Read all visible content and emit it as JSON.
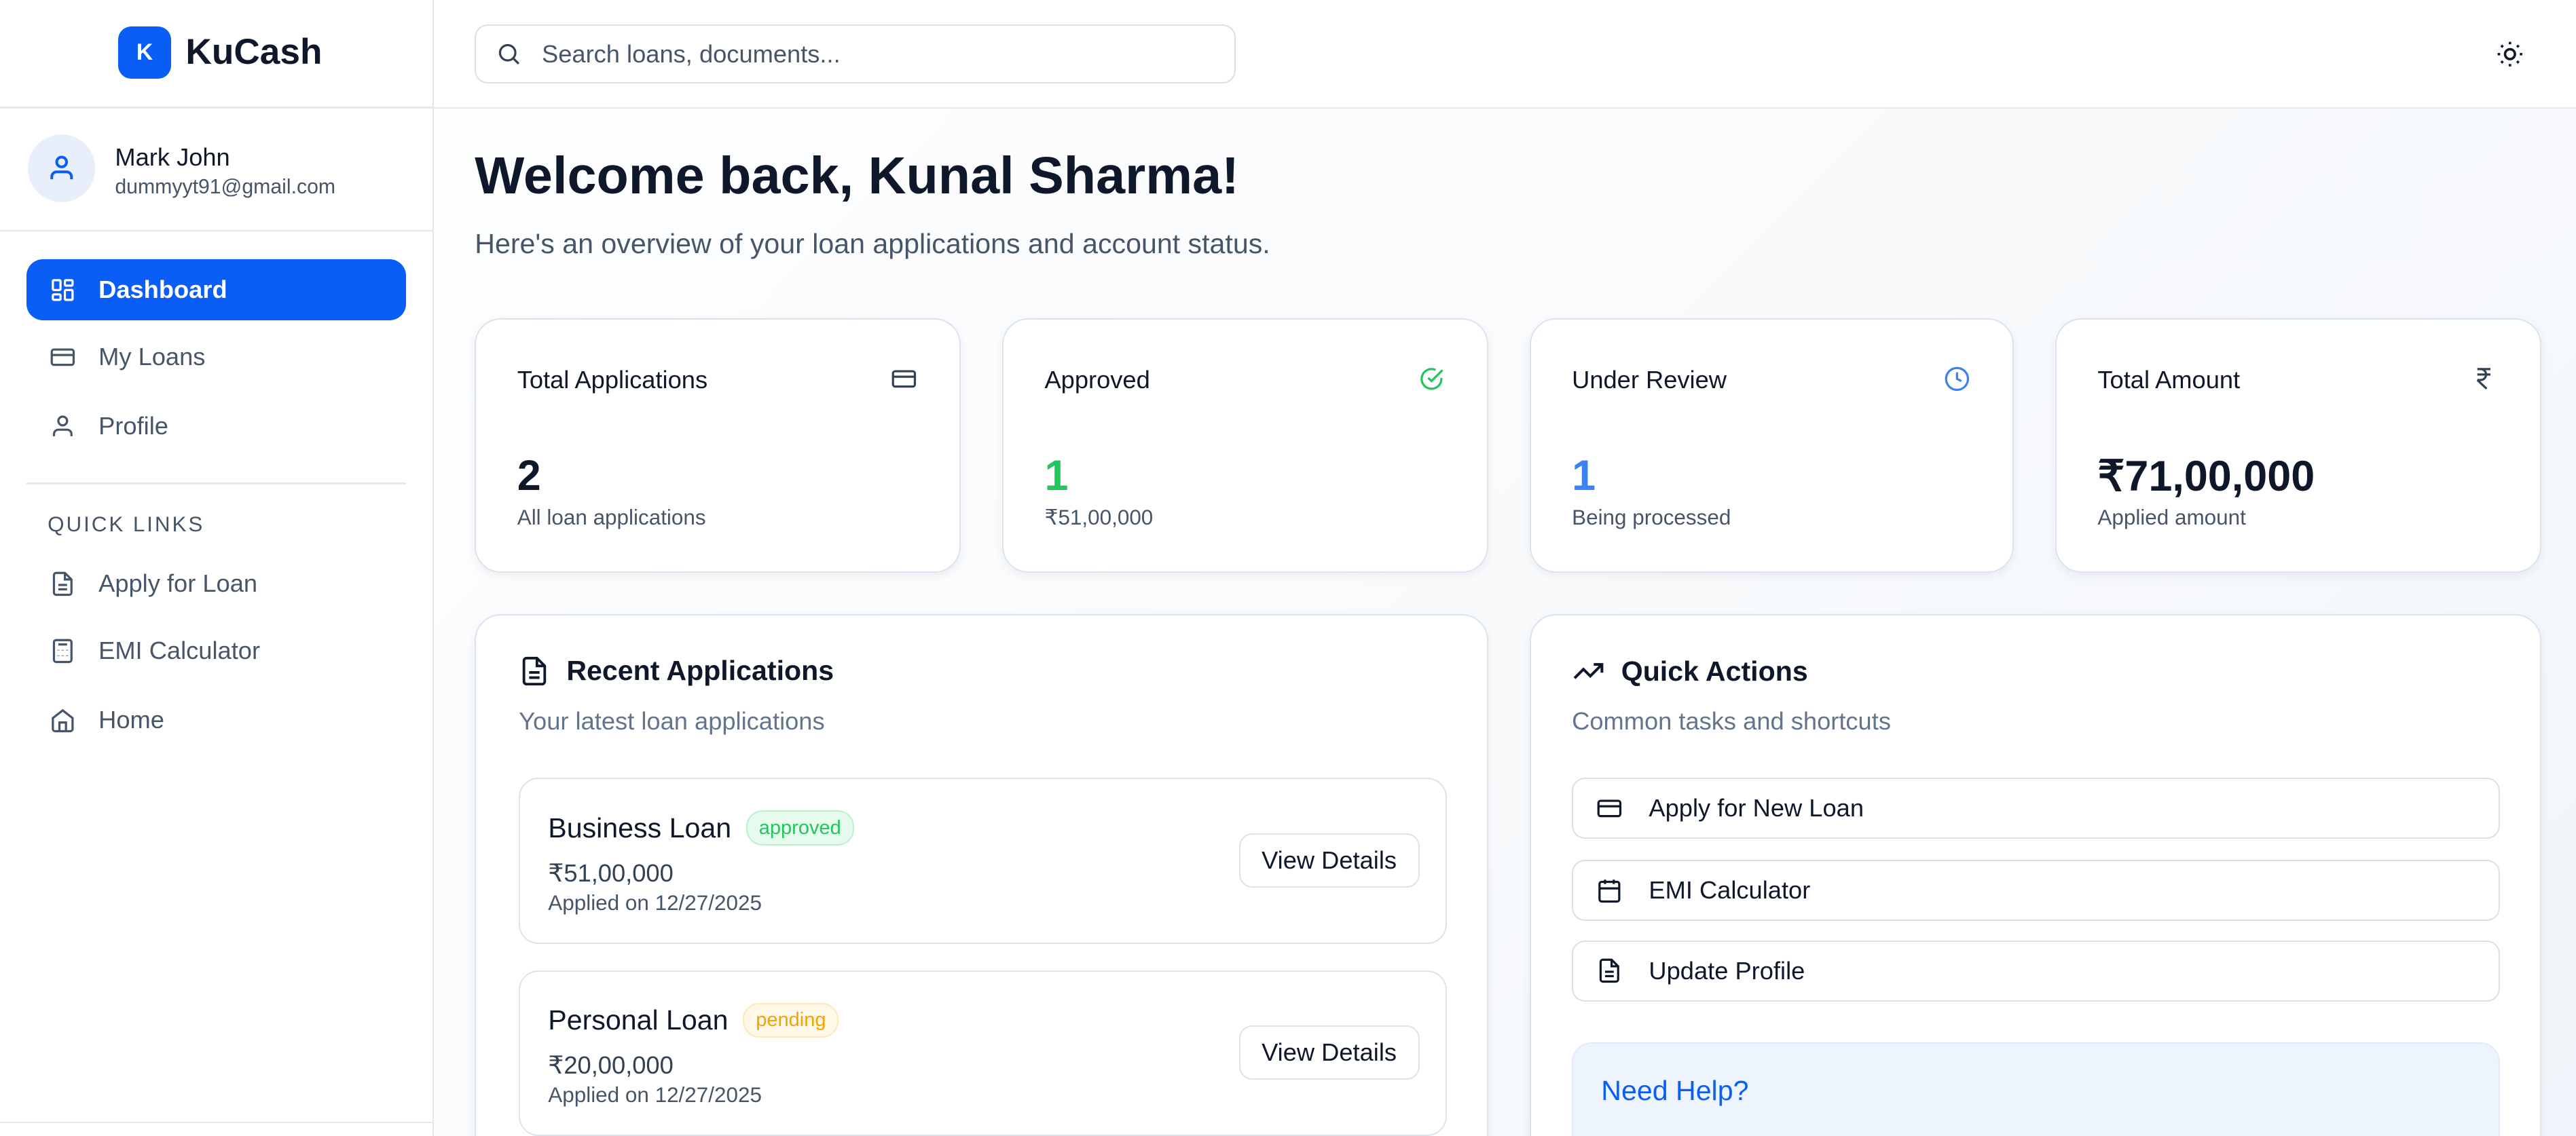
{
  "brand": {
    "logo_letter": "K",
    "name": "KuCash",
    "accent": "#0a5ef5"
  },
  "user": {
    "name": "Mark John",
    "email": "dummyyt91@gmail.com"
  },
  "nav": {
    "items": [
      {
        "label": "Dashboard",
        "icon": "grid-icon",
        "active": true
      },
      {
        "label": "My Loans",
        "icon": "credit-card-icon"
      },
      {
        "label": "Profile",
        "icon": "user-icon"
      }
    ]
  },
  "quick_links": {
    "heading": "QUICK LINKS",
    "items": [
      {
        "label": "Apply for Loan",
        "icon": "file-text-icon"
      },
      {
        "label": "EMI Calculator",
        "icon": "calculator-icon"
      },
      {
        "label": "Home",
        "icon": "home-icon"
      }
    ]
  },
  "search": {
    "placeholder": "Search loans, documents...",
    "value": ""
  },
  "header": {
    "title": "Welcome back, Kunal Sharma!",
    "subtitle": "Here's an overview of your loan applications and account status."
  },
  "stats": [
    {
      "label": "Total Applications",
      "value": "2",
      "sub": "All loan applications",
      "icon": "credit-card-icon",
      "color": "#0f172a"
    },
    {
      "label": "Approved",
      "value": "1",
      "sub": "₹51,00,000",
      "icon": "check-circle-icon",
      "color": "#22c55e"
    },
    {
      "label": "Under Review",
      "value": "1",
      "sub": "Being processed",
      "icon": "clock-icon",
      "color": "#3b82f6"
    },
    {
      "label": "Total Amount",
      "value": "₹71,00,000",
      "sub": "Applied amount",
      "icon": "rupee-icon",
      "color": "#0f172a"
    }
  ],
  "recent": {
    "title": "Recent Applications",
    "subtitle": "Your latest loan applications",
    "items": [
      {
        "name": "Business Loan",
        "status": "approved",
        "amount": "₹51,00,000",
        "date": "Applied on 12/27/2025",
        "button": "View Details"
      },
      {
        "name": "Personal Loan",
        "status": "pending",
        "amount": "₹20,00,000",
        "date": "Applied on 12/27/2025",
        "button": "View Details"
      }
    ]
  },
  "quick_actions": {
    "title": "Quick Actions",
    "subtitle": "Common tasks and shortcuts",
    "items": [
      {
        "label": "Apply for New Loan",
        "icon": "credit-card-icon"
      },
      {
        "label": "EMI Calculator",
        "icon": "calendar-icon"
      },
      {
        "label": "Update Profile",
        "icon": "file-text-icon"
      }
    ]
  },
  "help": {
    "title": "Need Help?"
  }
}
